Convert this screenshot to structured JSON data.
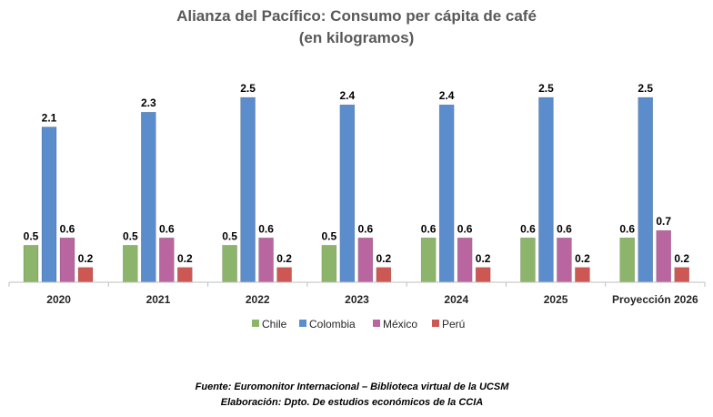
{
  "chart_data": {
    "type": "bar",
    "title": "Alianza del Pacífico: Consumo per cápita de café",
    "subtitle": "(en kilogramos)",
    "categories": [
      "2020",
      "2021",
      "2022",
      "2023",
      "2024",
      "2025",
      "Proyección 2026"
    ],
    "series": [
      {
        "name": "Chile",
        "color": "#8cb46a",
        "values": [
          0.5,
          0.5,
          0.5,
          0.5,
          0.6,
          0.6,
          0.6
        ]
      },
      {
        "name": "Colombia",
        "color": "#5b8ccb",
        "values": [
          2.1,
          2.3,
          2.5,
          2.4,
          2.4,
          2.5,
          2.5
        ]
      },
      {
        "name": "México",
        "color": "#b966a0",
        "values": [
          0.6,
          0.6,
          0.6,
          0.6,
          0.6,
          0.6,
          0.7
        ]
      },
      {
        "name": "Perú",
        "color": "#cd5753",
        "values": [
          0.2,
          0.2,
          0.2,
          0.2,
          0.2,
          0.2,
          0.2
        ]
      }
    ],
    "ylim": [
      0,
      2.5
    ],
    "grid": false,
    "legend_position": "bottom",
    "xlabel": "",
    "ylabel": ""
  },
  "footer": {
    "source": "Fuente: Euromonitor Internacional – Biblioteca virtual de la UCSM",
    "credit": "Elaboración: Dpto. De estudios económicos de la CCIA"
  }
}
